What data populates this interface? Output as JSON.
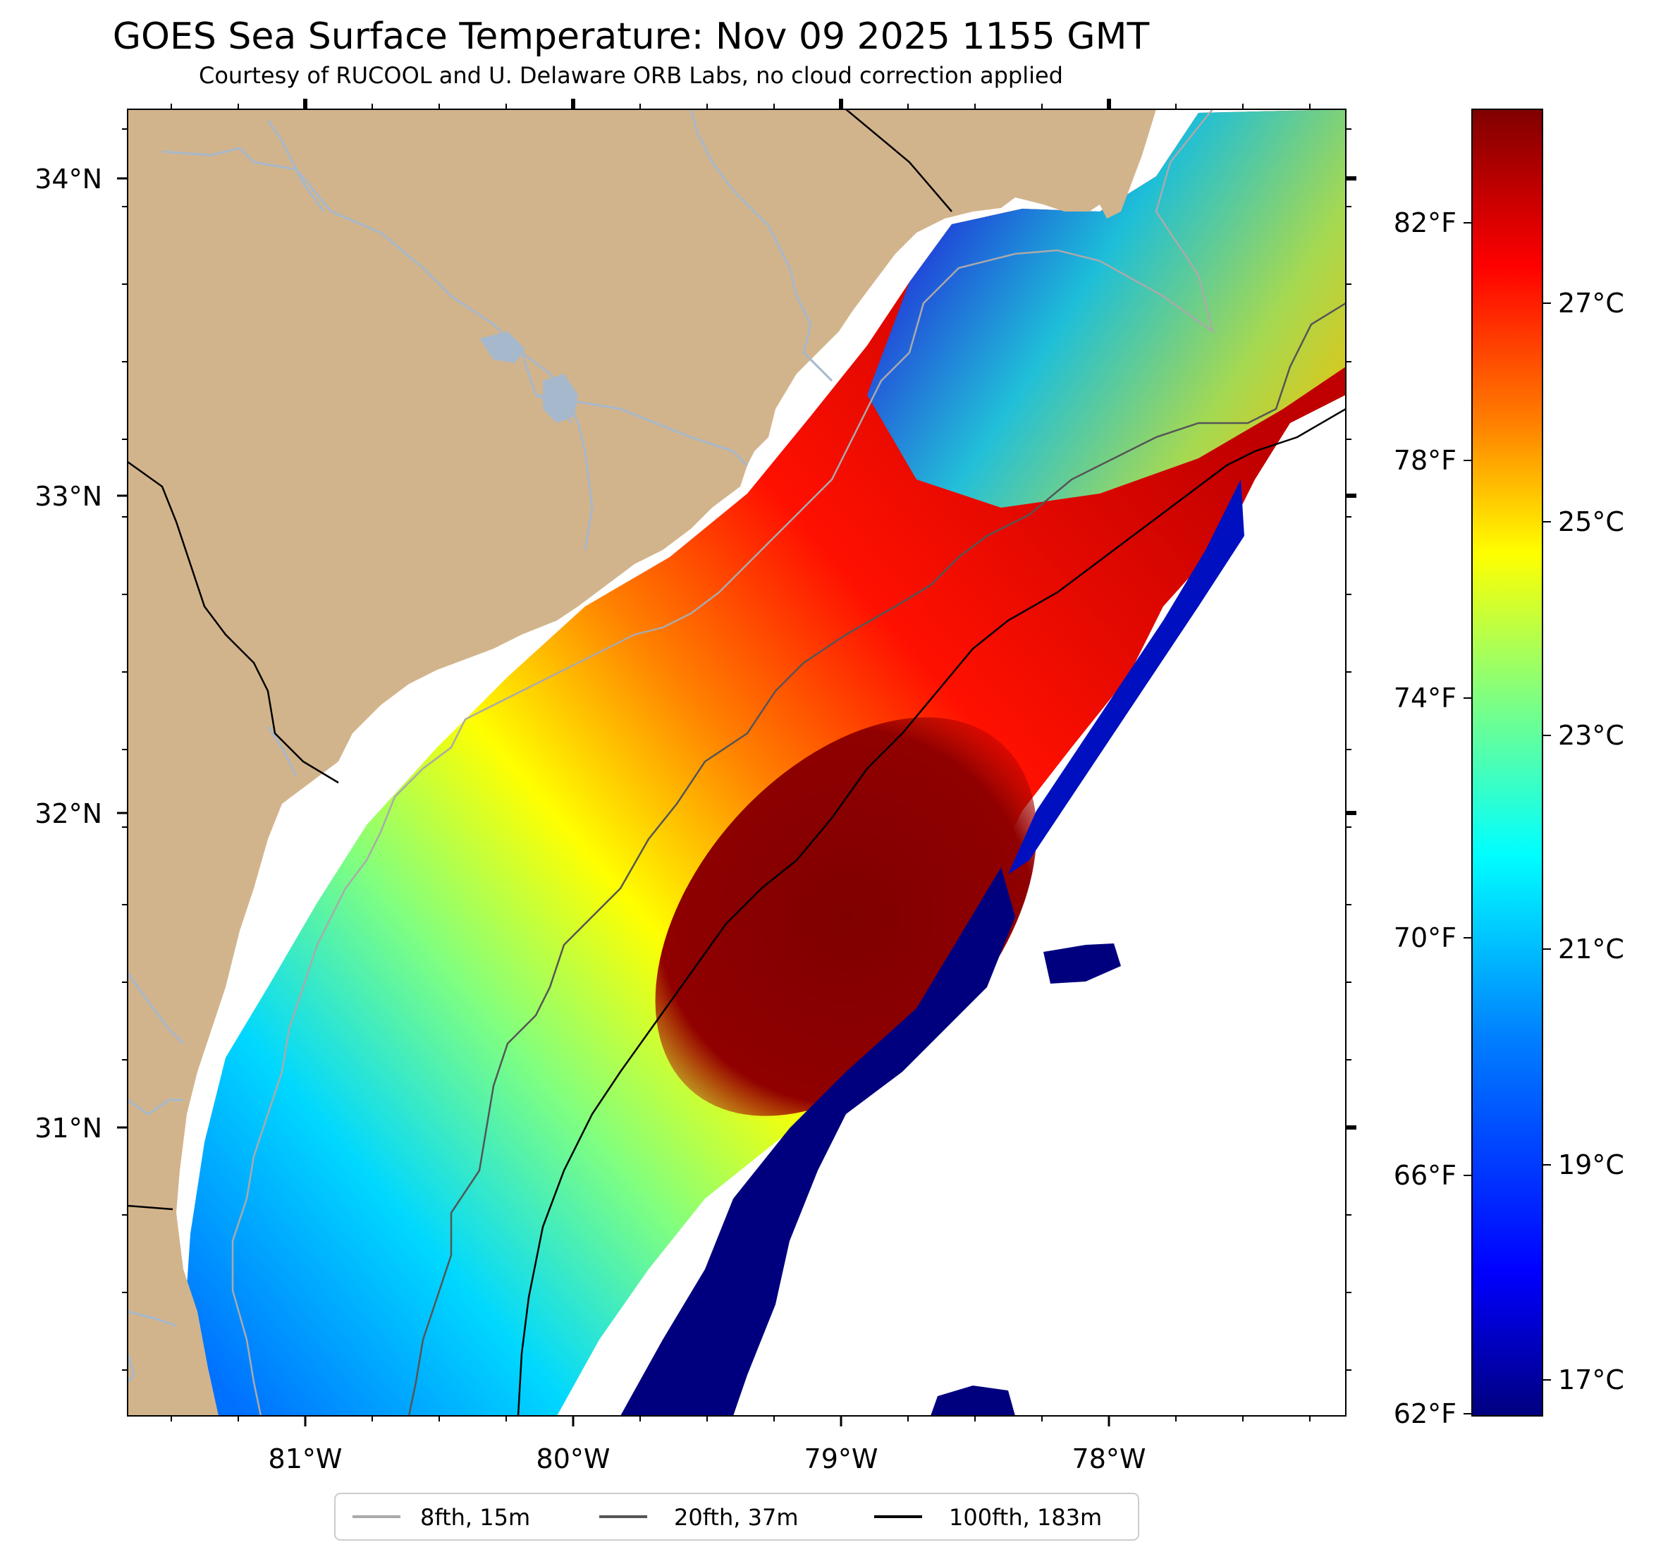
{
  "title": "GOES Sea Surface Temperature: Nov 09 2025 1155 GMT",
  "subtitle": "Courtesy of RUCOOL and U. Delaware ORB Labs, no cloud correction applied",
  "map": {
    "land_color": "#d2b48c",
    "river_color": "#a6b8cc",
    "lat_ticks": [
      "34°N",
      "33°N",
      "32°N",
      "31°N"
    ],
    "lon_ticks": [
      "81°W",
      "80°W",
      "79°W",
      "78°W"
    ]
  },
  "colorbar": {
    "celsius_ticks": [
      "27°C",
      "25°C",
      "23°C",
      "21°C",
      "19°C",
      "17°C"
    ],
    "fahrenheit_ticks": [
      "82°F",
      "78°F",
      "74°F",
      "70°F",
      "66°F",
      "62°F"
    ],
    "colors": [
      "#00007f",
      "#0000ff",
      "#0080ff",
      "#00ffff",
      "#80ff80",
      "#ffff00",
      "#ff8000",
      "#ff0000",
      "#7f0000"
    ]
  },
  "legend": {
    "items": [
      {
        "label": "8fth, 15m",
        "color": "#aaaaaa"
      },
      {
        "label": "20fth, 37m",
        "color": "#555555"
      },
      {
        "label": "100fth, 183m",
        "color": "#000000"
      }
    ]
  }
}
